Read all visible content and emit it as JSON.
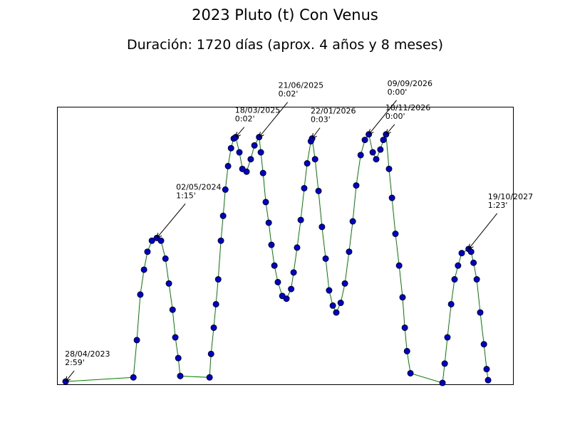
{
  "chart_data": {
    "type": "line",
    "title": "2023 Pluto (t) Con Venus",
    "subtitle": "Duración: 1720 días (aprox. 4 años y 8 meses)",
    "x": [
      0,
      275,
      289,
      303,
      318,
      332,
      350,
      370,
      387,
      405,
      419,
      434,
      445,
      457,
      465,
      584,
      590,
      601,
      610,
      619,
      630,
      639,
      648,
      659,
      671,
      682,
      690,
      705,
      717,
      734,
      751,
      766,
      785,
      792,
      801,
      812,
      824,
      835,
      847,
      861,
      879,
      896,
      915,
      925,
      939,
      954,
      968,
      980,
      995,
      1000,
      1012,
      1026,
      1040,
      1055,
      1069,
      1084,
      1098,
      1116,
      1133,
      1150,
      1165,
      1179,
      1197,
      1214,
      1230,
      1246,
      1260,
      1277,
      1289,
      1300,
      1312,
      1324,
      1338,
      1353,
      1367,
      1376,
      1385,
      1399,
      1529,
      1538,
      1549,
      1564,
      1578,
      1592,
      1607,
      1635,
      1645,
      1655,
      1668,
      1682,
      1697,
      1708,
      1714
    ],
    "series": [
      {
        "color": "#0000cc",
        "line_color": "#008000",
        "values": [
          179,
          176,
          149,
          116,
          98,
          85,
          77,
          75,
          77,
          90,
          108,
          127,
          147,
          162,
          175,
          176,
          159,
          140,
          123,
          105,
          77,
          59,
          40,
          23,
          10,
          3,
          2,
          13,
          25,
          27,
          18,
          8,
          2,
          13,
          28,
          49,
          64,
          80,
          95,
          107,
          117,
          119,
          112,
          100,
          82,
          62,
          39,
          21,
          5,
          3,
          18,
          41,
          67,
          90,
          113,
          124,
          129,
          122,
          108,
          85,
          63,
          37,
          15,
          4,
          0,
          13,
          18,
          11,
          4,
          0,
          25,
          46,
          72,
          95,
          118,
          140,
          157,
          173,
          180,
          166,
          147,
          123,
          105,
          95,
          86,
          83,
          85,
          93,
          105,
          129,
          152,
          170,
          178
        ]
      }
    ],
    "xlim": [
      -35,
      1815
    ],
    "ylim": [
      181,
      -20
    ],
    "annotations": [
      {
        "date": "28/04/2023",
        "sep": "2:59'",
        "x": 0,
        "y": 179
      },
      {
        "date": "02/05/2024",
        "sep": "1:15'",
        "x": 370,
        "y": 75
      },
      {
        "date": "18/03/2025",
        "sep": "0:02'",
        "x": 690,
        "y": 2
      },
      {
        "date": "21/06/2025",
        "sep": "0:02'",
        "x": 785,
        "y": 2
      },
      {
        "date": "22/01/2026",
        "sep": "0:03'",
        "x": 1000,
        "y": 3
      },
      {
        "date": "09/09/2026",
        "sep": "0:00'",
        "x": 1230,
        "y": 0
      },
      {
        "date": "18/11/2026",
        "sep": "0:00'",
        "x": 1300,
        "y": 0
      },
      {
        "date": "19/10/2027",
        "sep": "1:23'",
        "x": 1635,
        "y": 83
      }
    ]
  }
}
